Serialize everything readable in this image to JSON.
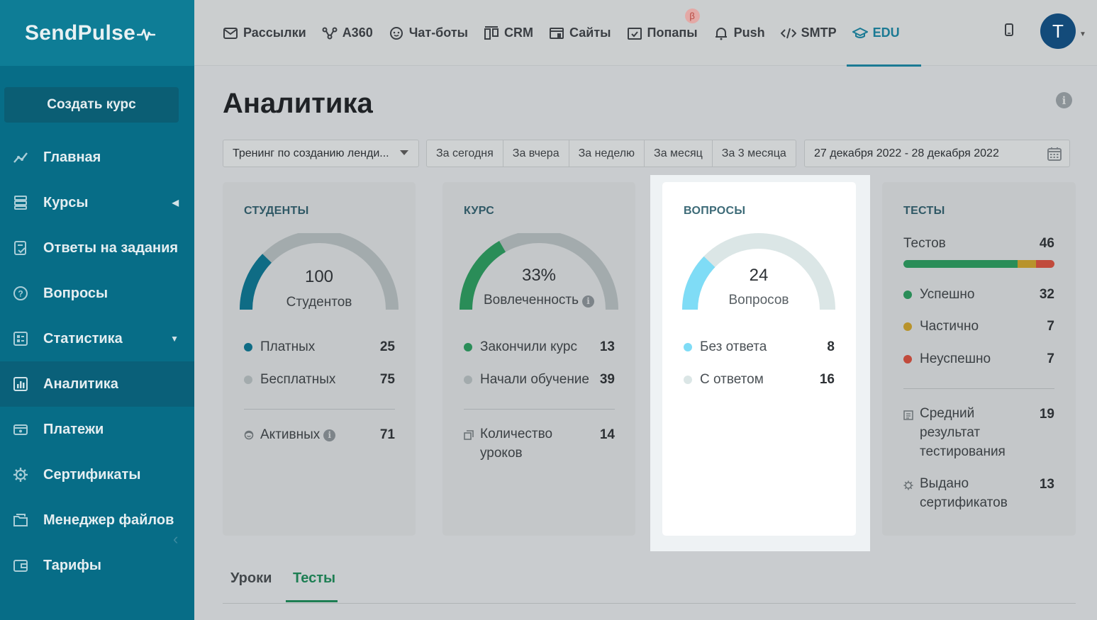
{
  "app": {
    "logo": "SendPulse"
  },
  "sidebar": {
    "create_button": "Создать курс",
    "items": [
      {
        "label": "Главная",
        "icon": "chart-line-icon"
      },
      {
        "label": "Курсы",
        "icon": "layers-icon"
      },
      {
        "label": "Ответы на задания",
        "icon": "doc-check-icon"
      },
      {
        "label": "Вопросы",
        "icon": "question-icon"
      },
      {
        "label": "Статистика",
        "icon": "stats-icon"
      },
      {
        "label": "Аналитика",
        "icon": "bar-chart-icon"
      },
      {
        "label": "Платежи",
        "icon": "wallet-icon"
      },
      {
        "label": "Сертификаты",
        "icon": "gear-icon"
      },
      {
        "label": "Менеджер файлов",
        "icon": "folder-icon"
      },
      {
        "label": "Тарифы",
        "icon": "card-icon"
      }
    ]
  },
  "topnav": {
    "items": [
      {
        "label": "Рассылки",
        "icon": "mail-icon"
      },
      {
        "label": "A360",
        "icon": "nodes-icon"
      },
      {
        "label": "Чат-боты",
        "icon": "chat-icon"
      },
      {
        "label": "CRM",
        "icon": "crm-icon"
      },
      {
        "label": "Сайты",
        "icon": "site-icon"
      },
      {
        "label": "Попапы",
        "icon": "popup-icon",
        "badge": "β"
      },
      {
        "label": "Push",
        "icon": "bell-icon"
      },
      {
        "label": "SMTP",
        "icon": "code-icon"
      },
      {
        "label": "EDU",
        "icon": "graduation-icon"
      }
    ],
    "avatar_letter": "T"
  },
  "page": {
    "title": "Аналитика",
    "course_select": "Тренинг по созданию ленди...",
    "periods": [
      "За сегодня",
      "За вчера",
      "За неделю",
      "За месяц",
      "За 3 месяца"
    ],
    "date_range": "27 декабря 2022 - 28 декабря 2022"
  },
  "cards": {
    "students": {
      "title": "СТУДЕНТЫ",
      "gauge_value": "100",
      "gauge_label": "Студентов",
      "paid_label": "Платных",
      "paid_value": "25",
      "free_label": "Бесплатных",
      "free_value": "75",
      "active_label": "Активных",
      "active_value": "71"
    },
    "course": {
      "title": "КУРС",
      "gauge_value": "33%",
      "gauge_label": "Вовлеченность",
      "finished_label": "Закончили курс",
      "finished_value": "13",
      "started_label": "Начали обучение",
      "started_value": "39",
      "lessons_label_1": "Количество",
      "lessons_label_2": "уроков",
      "lessons_value": "14"
    },
    "questions": {
      "title": "ВОПРОСЫ",
      "gauge_value": "24",
      "gauge_label": "Вопросов",
      "unanswered_label": "Без ответа",
      "unanswered_value": "8",
      "answered_label": "С ответом",
      "answered_value": "16"
    },
    "tests": {
      "title": "ТЕСТЫ",
      "total_label": "Тестов",
      "total_value": "46",
      "success_label": "Успешно",
      "success_value": "32",
      "partial_label": "Частично",
      "partial_value": "7",
      "fail_label": "Неуспешно",
      "fail_value": "7",
      "avg_label_1": "Средний",
      "avg_label_2": "результат",
      "avg_label_3": "тестирования",
      "avg_value": "19",
      "certs_label_1": "Выдано",
      "certs_label_2": "сертификатов",
      "certs_value": "13"
    }
  },
  "tabs": {
    "lessons": "Уроки",
    "tests": "Тесты"
  },
  "colors": {
    "sidebar": "#076d87",
    "accent": "#1b7a94",
    "green": "#2a8d58",
    "gold": "#b8932c",
    "red": "#c14b3c",
    "cyan": "#7fdcf6"
  }
}
